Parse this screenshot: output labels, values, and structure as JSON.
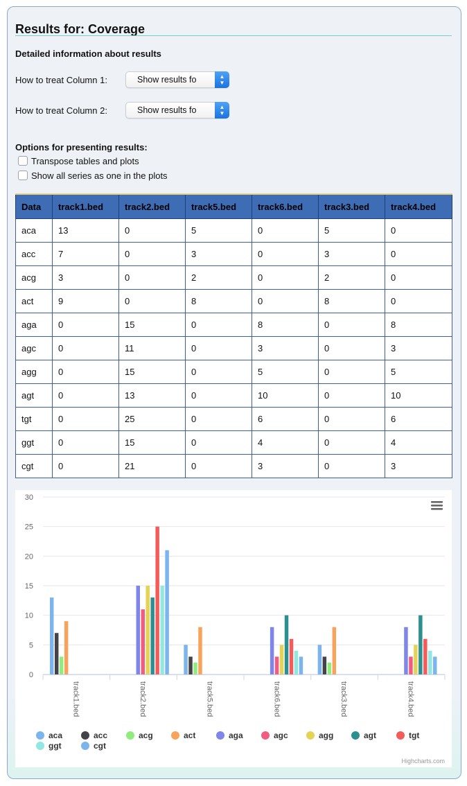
{
  "header": {
    "title": "Results for: Coverage",
    "subtitle": "Detailed information about results"
  },
  "controls": {
    "column1": {
      "label": "How to treat Column 1:",
      "value": "Show results fo"
    },
    "column2": {
      "label": "How to treat Column 2:",
      "value": "Show results fo"
    }
  },
  "options": {
    "title": "Options for presenting results:",
    "items": [
      {
        "label": "Transpose tables and plots",
        "checked": false
      },
      {
        "label": "Show all series as one in the plots",
        "checked": false
      }
    ]
  },
  "table": {
    "headers": [
      "Data",
      "track1.bed",
      "track2.bed",
      "track5.bed",
      "track6.bed",
      "track3.bed",
      "track4.bed"
    ],
    "rows": [
      [
        "aca",
        "13",
        "0",
        "5",
        "0",
        "5",
        "0"
      ],
      [
        "acc",
        "7",
        "0",
        "3",
        "0",
        "3",
        "0"
      ],
      [
        "acg",
        "3",
        "0",
        "2",
        "0",
        "2",
        "0"
      ],
      [
        "act",
        "9",
        "0",
        "8",
        "0",
        "8",
        "0"
      ],
      [
        "aga",
        "0",
        "15",
        "0",
        "8",
        "0",
        "8"
      ],
      [
        "agc",
        "0",
        "11",
        "0",
        "3",
        "0",
        "3"
      ],
      [
        "agg",
        "0",
        "15",
        "0",
        "5",
        "0",
        "5"
      ],
      [
        "agt",
        "0",
        "13",
        "0",
        "10",
        "0",
        "10"
      ],
      [
        "tgt",
        "0",
        "25",
        "0",
        "6",
        "0",
        "6"
      ],
      [
        "ggt",
        "0",
        "15",
        "0",
        "4",
        "0",
        "4"
      ],
      [
        "cgt",
        "0",
        "21",
        "0",
        "3",
        "0",
        "3"
      ]
    ]
  },
  "chart_data": {
    "type": "bar",
    "categories": [
      "track1.bed",
      "track2.bed",
      "track5.bed",
      "track6.bed",
      "track3.bed",
      "track4.bed"
    ],
    "ylim": [
      0,
      30
    ],
    "yticks": [
      0,
      5,
      10,
      15,
      20,
      25,
      30
    ],
    "grid": true,
    "legend": "bottom",
    "series": [
      {
        "name": "aca",
        "color": "#7cb5ec",
        "values": [
          13,
          0,
          5,
          0,
          5,
          0
        ]
      },
      {
        "name": "acc",
        "color": "#434348",
        "values": [
          7,
          0,
          3,
          0,
          3,
          0
        ]
      },
      {
        "name": "acg",
        "color": "#90ed7d",
        "values": [
          3,
          0,
          2,
          0,
          2,
          0
        ]
      },
      {
        "name": "act",
        "color": "#f7a35c",
        "values": [
          9,
          0,
          8,
          0,
          8,
          0
        ]
      },
      {
        "name": "aga",
        "color": "#8085e9",
        "values": [
          0,
          15,
          0,
          8,
          0,
          8
        ]
      },
      {
        "name": "agc",
        "color": "#f15c80",
        "values": [
          0,
          11,
          0,
          3,
          0,
          3
        ]
      },
      {
        "name": "agg",
        "color": "#e4d354",
        "values": [
          0,
          15,
          0,
          5,
          0,
          5
        ]
      },
      {
        "name": "agt",
        "color": "#2b908f",
        "values": [
          0,
          13,
          0,
          10,
          0,
          10
        ]
      },
      {
        "name": "tgt",
        "color": "#f45b5b",
        "values": [
          0,
          25,
          0,
          6,
          0,
          6
        ]
      },
      {
        "name": "ggt",
        "color": "#91e8e1",
        "values": [
          0,
          15,
          0,
          4,
          0,
          4
        ]
      },
      {
        "name": "cgt",
        "color": "#7cb5ec",
        "values": [
          0,
          21,
          0,
          3,
          0,
          3
        ]
      }
    ],
    "credit": "Highcharts.com",
    "menu_icon": "hamburger-menu-icon"
  }
}
